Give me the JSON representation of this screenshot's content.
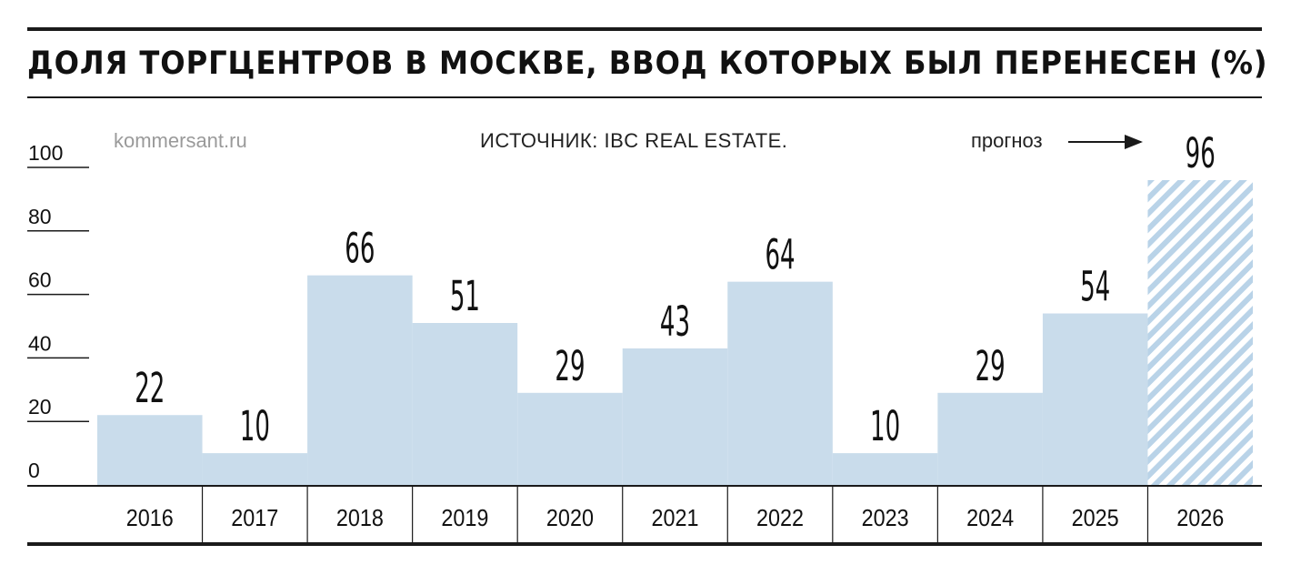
{
  "header": {
    "title": "ДОЛЯ ТОРГЦЕНТРОВ В МОСКВЕ, ВВОД КОТОРЫХ БЫЛ ПЕРЕНЕСЕН (%)",
    "watermark": "kommersant.ru",
    "source": "ИСТОЧНИК: IBC REAL ESTATE.",
    "forecast_label": "прогноз"
  },
  "colors": {
    "bar_fill": "#c9dceb",
    "forecast_stripe": "#b9d3e8",
    "axis": "#1a1a1a",
    "text": "#111111"
  },
  "chart_data": {
    "type": "bar",
    "title": "ДОЛЯ ТОРГЦЕНТРОВ В МОСКВЕ, ВВОД КОТОРЫХ БЫЛ ПЕРЕНЕСЕН (%)",
    "categories": [
      "2016",
      "2017",
      "2018",
      "2019",
      "2020",
      "2021",
      "2022",
      "2023",
      "2024",
      "2025",
      "2026"
    ],
    "values": [
      22,
      10,
      66,
      51,
      29,
      43,
      64,
      10,
      29,
      54,
      96
    ],
    "data_labels": [
      "22",
      "10",
      "66",
      "51",
      "29",
      "43",
      "64",
      "10",
      "29",
      "54",
      "96"
    ],
    "forecast": [
      false,
      false,
      false,
      false,
      false,
      false,
      false,
      false,
      false,
      false,
      true
    ],
    "ylim": [
      0,
      100
    ],
    "yticks": [
      0,
      20,
      40,
      60,
      80,
      100
    ],
    "ytick_labels": [
      "0",
      "20",
      "40",
      "60",
      "80",
      "100"
    ],
    "grid": false,
    "legend": "none"
  }
}
